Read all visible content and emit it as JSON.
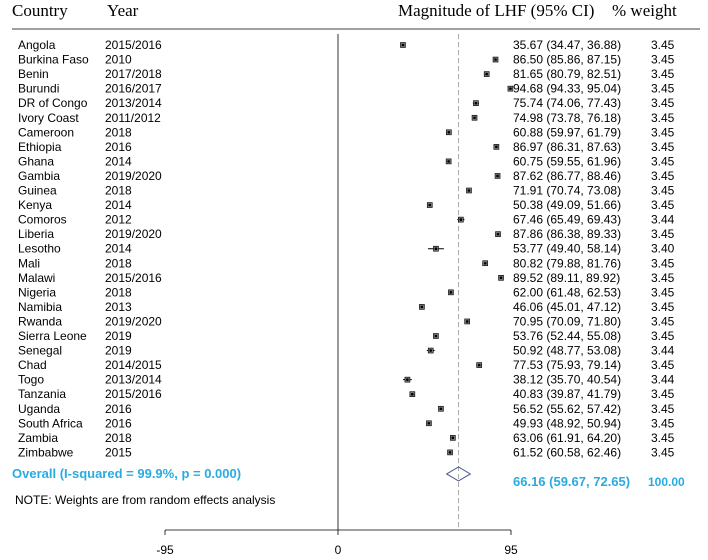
{
  "headers": {
    "country": "Country",
    "year": "Year",
    "effect": "Magnitude of LHF (95% CI)",
    "weight": "% weight"
  },
  "chart_data": {
    "type": "forest",
    "x_range": [
      -95,
      95
    ],
    "x_ticks": [
      "-95",
      "0",
      "95"
    ],
    "reference_value": 0,
    "studies": [
      {
        "country": "Angola",
        "year": "2015/2016",
        "es": 35.67,
        "lo": 34.47,
        "hi": 36.88,
        "label": "35.67 (34.47, 36.88)",
        "weight": "3.45"
      },
      {
        "country": "Burkina Faso",
        "year": "2010",
        "es": 86.5,
        "lo": 85.86,
        "hi": 87.15,
        "label": "86.50 (85.86, 87.15)",
        "weight": "3.45"
      },
      {
        "country": "Benin",
        "year": "2017/2018",
        "es": 81.65,
        "lo": 80.79,
        "hi": 82.51,
        "label": "81.65 (80.79, 82.51)",
        "weight": "3.45"
      },
      {
        "country": "Burundi",
        "year": "2016/2017",
        "es": 94.68,
        "lo": 94.33,
        "hi": 95.04,
        "label": "94.68 (94.33, 95.04)",
        "weight": "3.45"
      },
      {
        "country": "DR of Congo",
        "year": "2013/2014",
        "es": 75.74,
        "lo": 74.06,
        "hi": 77.43,
        "label": "75.74 (74.06, 77.43)",
        "weight": "3.45"
      },
      {
        "country": "Ivory Coast",
        "year": "2011/2012",
        "es": 74.98,
        "lo": 73.78,
        "hi": 76.18,
        "label": "74.98 (73.78, 76.18)",
        "weight": "3.45"
      },
      {
        "country": "Cameroon",
        "year": "2018",
        "es": 60.88,
        "lo": 59.97,
        "hi": 61.79,
        "label": "60.88 (59.97, 61.79)",
        "weight": "3.45"
      },
      {
        "country": "Ethiopia",
        "year": "2016",
        "es": 86.97,
        "lo": 86.31,
        "hi": 87.63,
        "label": "86.97 (86.31, 87.63)",
        "weight": "3.45"
      },
      {
        "country": "Ghana",
        "year": "2014",
        "es": 60.75,
        "lo": 59.55,
        "hi": 61.96,
        "label": "60.75 (59.55, 61.96)",
        "weight": "3.45"
      },
      {
        "country": "Gambia",
        "year": "2019/2020",
        "es": 87.62,
        "lo": 86.77,
        "hi": 88.46,
        "label": "87.62 (86.77, 88.46)",
        "weight": "3.45"
      },
      {
        "country": "Guinea",
        "year": "2018",
        "es": 71.91,
        "lo": 70.74,
        "hi": 73.08,
        "label": "71.91 (70.74, 73.08)",
        "weight": "3.45"
      },
      {
        "country": "Kenya",
        "year": "2014",
        "es": 50.38,
        "lo": 49.09,
        "hi": 51.66,
        "label": "50.38 (49.09, 51.66)",
        "weight": "3.45"
      },
      {
        "country": "Comoros",
        "year": "2012",
        "es": 67.46,
        "lo": 65.49,
        "hi": 69.43,
        "label": "67.46 (65.49, 69.43)",
        "weight": "3.44"
      },
      {
        "country": "Liberia",
        "year": "2019/2020",
        "es": 87.86,
        "lo": 86.38,
        "hi": 89.33,
        "label": "87.86 (86.38, 89.33)",
        "weight": "3.45"
      },
      {
        "country": "Lesotho",
        "year": "2014",
        "es": 53.77,
        "lo": 49.4,
        "hi": 58.14,
        "label": "53.77 (49.40, 58.14)",
        "weight": "3.40"
      },
      {
        "country": "Mali",
        "year": "2018",
        "es": 80.82,
        "lo": 79.88,
        "hi": 81.76,
        "label": "80.82 (79.88, 81.76)",
        "weight": "3.45"
      },
      {
        "country": "Malawi",
        "year": "2015/2016",
        "es": 89.52,
        "lo": 89.11,
        "hi": 89.92,
        "label": "89.52 (89.11, 89.92)",
        "weight": "3.45"
      },
      {
        "country": "Nigeria",
        "year": "2018",
        "es": 62.0,
        "lo": 61.48,
        "hi": 62.53,
        "label": "62.00 (61.48, 62.53)",
        "weight": "3.45"
      },
      {
        "country": "Namibia",
        "year": "2013",
        "es": 46.06,
        "lo": 45.01,
        "hi": 47.12,
        "label": "46.06 (45.01, 47.12)",
        "weight": "3.45"
      },
      {
        "country": "Rwanda",
        "year": "2019/2020",
        "es": 70.95,
        "lo": 70.09,
        "hi": 71.8,
        "label": "70.95 (70.09, 71.80)",
        "weight": "3.45"
      },
      {
        "country": "Sierra Leone",
        "year": "2019",
        "es": 53.76,
        "lo": 52.44,
        "hi": 55.08,
        "label": "53.76 (52.44, 55.08)",
        "weight": "3.45"
      },
      {
        "country": "Senegal",
        "year": "2019",
        "es": 50.92,
        "lo": 48.77,
        "hi": 53.08,
        "label": "50.92 (48.77, 53.08)",
        "weight": "3.44"
      },
      {
        "country": "Chad",
        "year": "2014/2015",
        "es": 77.53,
        "lo": 75.93,
        "hi": 79.14,
        "label": "77.53 (75.93, 79.14)",
        "weight": "3.45"
      },
      {
        "country": "Togo",
        "year": "2013/2014",
        "es": 38.12,
        "lo": 35.7,
        "hi": 40.54,
        "label": "38.12 (35.70, 40.54)",
        "weight": "3.44"
      },
      {
        "country": "Tanzania",
        "year": "2015/2016",
        "es": 40.83,
        "lo": 39.87,
        "hi": 41.79,
        "label": "40.83 (39.87, 41.79)",
        "weight": "3.45"
      },
      {
        "country": "Uganda",
        "year": "2016",
        "es": 56.52,
        "lo": 55.62,
        "hi": 57.42,
        "label": "56.52 (55.62, 57.42)",
        "weight": "3.45"
      },
      {
        "country": "South Africa",
        "year": "2016",
        "es": 49.93,
        "lo": 48.92,
        "hi": 50.94,
        "label": "49.93 (48.92, 50.94)",
        "weight": "3.45"
      },
      {
        "country": "Zambia",
        "year": "2018",
        "es": 63.06,
        "lo": 61.91,
        "hi": 64.2,
        "label": "63.06 (61.91, 64.20)",
        "weight": "3.45"
      },
      {
        "country": "Zimbabwe",
        "year": "2015",
        "es": 61.52,
        "lo": 60.58,
        "hi": 62.46,
        "label": "61.52 (60.58, 62.46)",
        "weight": "3.45"
      }
    ],
    "overall": {
      "label": "Overall  (I-squared = 99.9%, p = 0.000)",
      "es": 66.16,
      "lo": 59.67,
      "hi": 72.65,
      "ci_label": "66.16 (59.67, 72.65)",
      "weight": "100.00"
    },
    "note": "NOTE: Weights are from random effects analysis"
  },
  "colors": {
    "overall_text": "#29abe2",
    "diamond": "#4a5a8c",
    "dashed_line": "#aaaaaa",
    "axis": "#000000"
  }
}
